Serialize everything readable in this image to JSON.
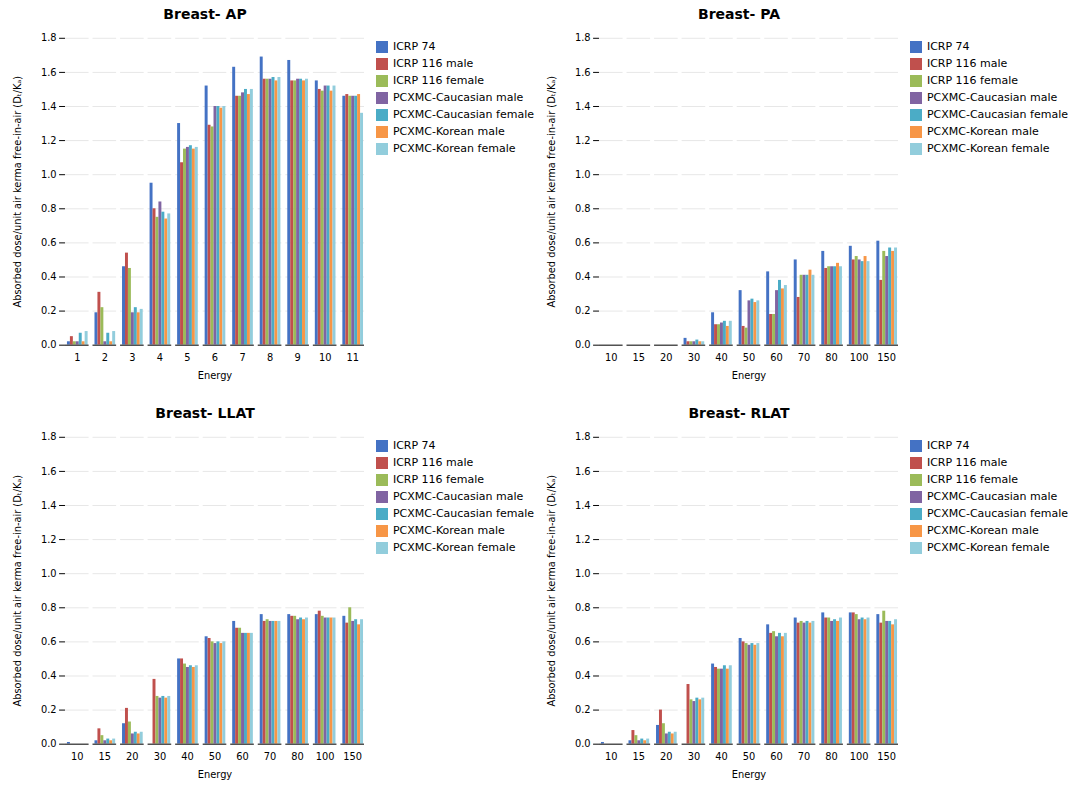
{
  "chart_data": [
    {
      "type": "bar",
      "title": "Breast- AP",
      "xlabel": "Energy",
      "ylabel": "Absorbed dose/unit air kerma free-in-air (Dₜ/Kₐ)",
      "categories": [
        "1",
        "2",
        "3",
        "4",
        "5",
        "6",
        "7",
        "8",
        "9",
        "10",
        "11"
      ],
      "series": [
        {
          "name": "ICRP 74",
          "color": "#4472C4",
          "values": [
            0.02,
            0.19,
            0.46,
            0.95,
            1.3,
            1.52,
            1.63,
            1.69,
            1.67,
            1.55,
            1.46
          ]
        },
        {
          "name": "ICRP 116 male",
          "color": "#C0504D",
          "values": [
            0.05,
            0.31,
            0.54,
            0.8,
            1.07,
            1.29,
            1.46,
            1.56,
            1.55,
            1.5,
            1.47
          ]
        },
        {
          "name": "ICRP 116 female",
          "color": "#9BBB59",
          "values": [
            0.02,
            0.22,
            0.45,
            0.75,
            1.15,
            1.28,
            1.46,
            1.56,
            1.55,
            1.49,
            1.46
          ]
        },
        {
          "name": "PCXMC-Caucasian male",
          "color": "#8064A2",
          "values": [
            0.02,
            0.02,
            0.19,
            0.84,
            1.16,
            1.4,
            1.48,
            1.56,
            1.56,
            1.52,
            1.46
          ]
        },
        {
          "name": "PCXMC-Caucasian female",
          "color": "#4BACC6",
          "values": [
            0.07,
            0.07,
            0.22,
            0.78,
            1.17,
            1.4,
            1.5,
            1.57,
            1.56,
            1.52,
            1.46
          ]
        },
        {
          "name": "PCXMC-Korean male",
          "color": "#F79646",
          "values": [
            0.02,
            0.02,
            0.19,
            0.74,
            1.15,
            1.39,
            1.47,
            1.55,
            1.55,
            1.49,
            1.47
          ]
        },
        {
          "name": "PCXMC-Korean female",
          "color": "#92CDDC",
          "values": [
            0.08,
            0.08,
            0.21,
            0.77,
            1.16,
            1.4,
            1.5,
            1.57,
            1.56,
            1.52,
            1.36
          ]
        }
      ],
      "ylim": [
        0,
        1.8
      ],
      "yticks": [
        {
          "value": 0,
          "label": "0.0"
        },
        0.2,
        0.4,
        0.6,
        0.8,
        {
          "value": 1.0,
          "label": "1.0"
        },
        1.2,
        1.4,
        1.6,
        1.8
      ],
      "grid": true,
      "legend": "right"
    },
    {
      "type": "bar",
      "title": "Breast- PA",
      "xlabel": "Energy",
      "ylabel": "Absorbed dose/unit air kerma free-in-air (Dₜ/Kₐ)",
      "categories": [
        "10",
        "15",
        "20",
        "30",
        "40",
        "50",
        "60",
        "70",
        "80",
        "100",
        "150"
      ],
      "series": [
        {
          "name": "ICRP 74",
          "color": "#4472C4",
          "values": [
            0.0,
            0.0,
            0.0,
            0.04,
            0.19,
            0.32,
            0.43,
            0.5,
            0.55,
            0.58,
            0.61
          ]
        },
        {
          "name": "ICRP 116 male",
          "color": "#C0504D",
          "values": [
            0.0,
            0.0,
            0.0,
            0.02,
            0.12,
            0.11,
            0.18,
            0.28,
            0.45,
            0.5,
            0.38
          ]
        },
        {
          "name": "ICRP 116 female",
          "color": "#9BBB59",
          "values": [
            0.0,
            0.0,
            0.0,
            0.02,
            0.12,
            0.1,
            0.18,
            0.41,
            0.46,
            0.52,
            0.55
          ]
        },
        {
          "name": "PCXMC-Caucasian male",
          "color": "#8064A2",
          "values": [
            0.0,
            0.0,
            0.0,
            0.02,
            0.13,
            0.26,
            0.32,
            0.41,
            0.46,
            0.5,
            0.52
          ]
        },
        {
          "name": "PCXMC-Caucasian female",
          "color": "#4BACC6",
          "values": [
            0.0,
            0.0,
            0.0,
            0.03,
            0.14,
            0.27,
            0.38,
            0.41,
            0.46,
            0.49,
            0.57
          ]
        },
        {
          "name": "PCXMC-Korean male",
          "color": "#F79646",
          "values": [
            0.0,
            0.0,
            0.0,
            0.02,
            0.11,
            0.25,
            0.33,
            0.44,
            0.48,
            0.52,
            0.55
          ]
        },
        {
          "name": "PCXMC-Korean female",
          "color": "#92CDDC",
          "values": [
            0.0,
            0.0,
            0.0,
            0.02,
            0.14,
            0.26,
            0.35,
            0.41,
            0.46,
            0.49,
            0.57
          ]
        }
      ],
      "ylim": [
        0,
        1.8
      ],
      "yticks": [
        {
          "value": 0,
          "label": "0.0"
        },
        0.2,
        0.4,
        0.6,
        0.8,
        {
          "value": 1.0,
          "label": "1.0"
        },
        1.2,
        1.4,
        1.6,
        1.8
      ],
      "grid": true,
      "legend": "right"
    },
    {
      "type": "bar",
      "title": "Breast- LLAT",
      "xlabel": "Energy",
      "ylabel": "Absorbed dose/unit air kerma free-in-air (Dₜ/Kₐ)",
      "categories": [
        "10",
        "15",
        "20",
        "30",
        "40",
        "50",
        "60",
        "70",
        "80",
        "100",
        "150"
      ],
      "series": [
        {
          "name": "ICRP 74",
          "color": "#4472C4",
          "values": [
            0.01,
            0.02,
            0.12,
            0.0,
            0.5,
            0.63,
            0.72,
            0.76,
            0.76,
            0.76,
            0.75
          ]
        },
        {
          "name": "ICRP 116 male",
          "color": "#C0504D",
          "values": [
            0.0,
            0.09,
            0.21,
            0.38,
            0.5,
            0.62,
            0.68,
            0.72,
            0.75,
            0.78,
            0.71
          ]
        },
        {
          "name": "ICRP 116 female",
          "color": "#9BBB59",
          "values": [
            0.0,
            0.05,
            0.13,
            0.28,
            0.47,
            0.6,
            0.68,
            0.73,
            0.75,
            0.75,
            0.8
          ]
        },
        {
          "name": "PCXMC-Caucasian male",
          "color": "#8064A2",
          "values": [
            0.0,
            0.02,
            0.06,
            0.27,
            0.45,
            0.59,
            0.65,
            0.72,
            0.73,
            0.74,
            0.72
          ]
        },
        {
          "name": "PCXMC-Caucasian female",
          "color": "#4BACC6",
          "values": [
            0.0,
            0.03,
            0.07,
            0.28,
            0.46,
            0.6,
            0.65,
            0.72,
            0.74,
            0.74,
            0.73
          ]
        },
        {
          "name": "PCXMC-Korean male",
          "color": "#F79646",
          "values": [
            0.0,
            0.02,
            0.06,
            0.27,
            0.45,
            0.59,
            0.65,
            0.72,
            0.73,
            0.74,
            0.7
          ]
        },
        {
          "name": "PCXMC-Korean female",
          "color": "#92CDDC",
          "values": [
            0.0,
            0.03,
            0.07,
            0.28,
            0.46,
            0.6,
            0.65,
            0.72,
            0.74,
            0.74,
            0.73
          ]
        }
      ],
      "ylim": [
        0,
        1.8
      ],
      "yticks": [
        {
          "value": 0,
          "label": "0.0"
        },
        0.2,
        0.4,
        0.6,
        0.8,
        {
          "value": 1.0,
          "label": "1.0"
        },
        1.2,
        1.4,
        1.6,
        1.8
      ],
      "grid": true,
      "legend": "right"
    },
    {
      "type": "bar",
      "title": "Breast- RLAT",
      "xlabel": "Energy",
      "ylabel": "Absorbed dose/unit air kerma free-in-air (Dₜ/Kₐ)",
      "categories": [
        "10",
        "15",
        "20",
        "30",
        "40",
        "50",
        "60",
        "70",
        "80",
        "100",
        "150"
      ],
      "series": [
        {
          "name": "ICRP 74",
          "color": "#4472C4",
          "values": [
            0.01,
            0.02,
            0.11,
            0.0,
            0.47,
            0.62,
            0.7,
            0.74,
            0.77,
            0.77,
            0.76
          ]
        },
        {
          "name": "ICRP 116 male",
          "color": "#C0504D",
          "values": [
            0.0,
            0.08,
            0.2,
            0.35,
            0.45,
            0.6,
            0.65,
            0.71,
            0.74,
            0.77,
            0.71
          ]
        },
        {
          "name": "ICRP 116 female",
          "color": "#9BBB59",
          "values": [
            0.0,
            0.05,
            0.12,
            0.26,
            0.44,
            0.59,
            0.66,
            0.72,
            0.74,
            0.76,
            0.78
          ]
        },
        {
          "name": "PCXMC-Caucasian male",
          "color": "#8064A2",
          "values": [
            0.0,
            0.02,
            0.06,
            0.25,
            0.44,
            0.58,
            0.63,
            0.71,
            0.72,
            0.73,
            0.72
          ]
        },
        {
          "name": "PCXMC-Caucasian female",
          "color": "#4BACC6",
          "values": [
            0.0,
            0.03,
            0.07,
            0.27,
            0.46,
            0.59,
            0.65,
            0.72,
            0.73,
            0.74,
            0.72
          ]
        },
        {
          "name": "PCXMC-Korean male",
          "color": "#F79646",
          "values": [
            0.0,
            0.02,
            0.06,
            0.26,
            0.44,
            0.58,
            0.63,
            0.71,
            0.72,
            0.73,
            0.7
          ]
        },
        {
          "name": "PCXMC-Korean female",
          "color": "#92CDDC",
          "values": [
            0.0,
            0.03,
            0.07,
            0.27,
            0.46,
            0.59,
            0.65,
            0.72,
            0.74,
            0.74,
            0.73
          ]
        }
      ],
      "ylim": [
        0,
        1.8
      ],
      "yticks": [
        {
          "value": 0,
          "label": "0.0"
        },
        0.2,
        0.4,
        0.6,
        0.8,
        {
          "value": 1.0,
          "label": "1.0"
        },
        1.2,
        1.4,
        1.6,
        1.8
      ],
      "grid": true,
      "legend": "right"
    }
  ]
}
